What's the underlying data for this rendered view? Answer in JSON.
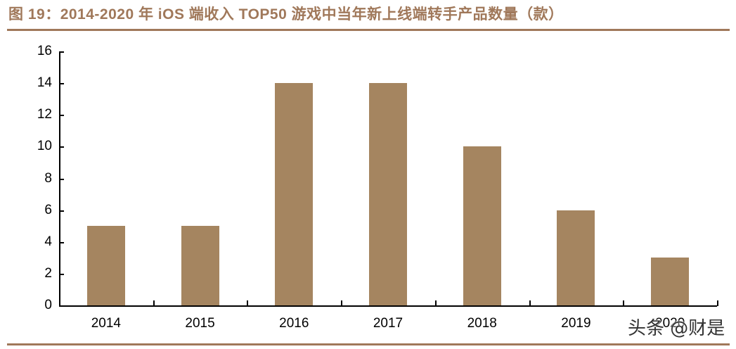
{
  "title": "图 19：2014-2020 年 iOS 端收入 TOP50 游戏中当年新上线端转手产品数量（款）",
  "watermark": "头条 @财是",
  "colors": {
    "title": "#a0785a",
    "bar": "#a58560",
    "rule": "#a0785a"
  },
  "chart_data": {
    "type": "bar",
    "title": "2014-2020 年 iOS 端收入 TOP50 游戏中当年新上线端转手产品数量（款）",
    "categories": [
      "2014",
      "2015",
      "2016",
      "2017",
      "2018",
      "2019",
      "2020"
    ],
    "values": [
      5,
      5,
      14,
      14,
      10,
      6,
      3
    ],
    "xlabel": "",
    "ylabel": "",
    "ylim": [
      0,
      16
    ],
    "yticks": [
      "0",
      "2",
      "4",
      "6",
      "8",
      "10",
      "12",
      "14",
      "16"
    ],
    "grid": false,
    "legend": null
  }
}
